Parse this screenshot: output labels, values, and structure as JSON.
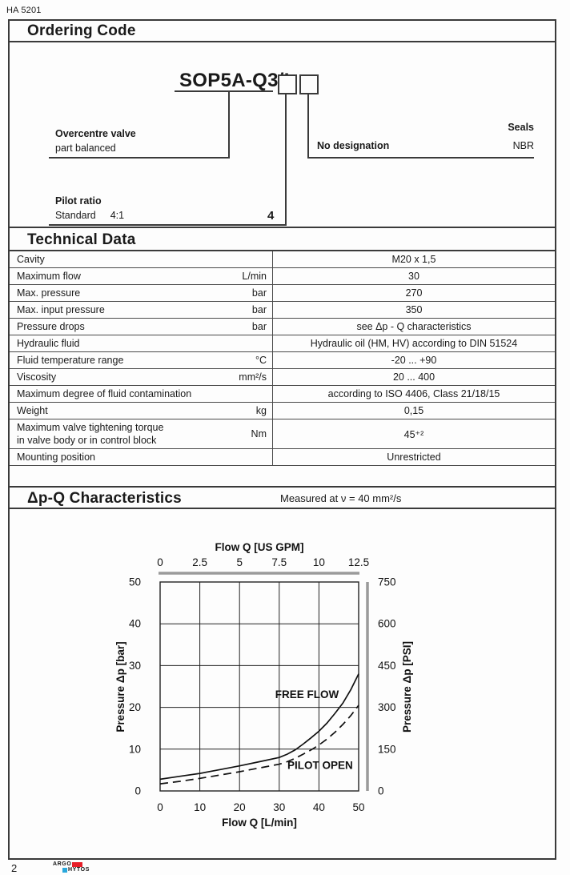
{
  "page": {
    "doc_code": "HA 5201",
    "page_number": "2",
    "logo": {
      "line1": "ARGO",
      "line2": "HYTOS",
      "red": "#e61e28",
      "blue": "#29a8dc"
    }
  },
  "sections": {
    "ordering": {
      "title": "Ordering Code"
    },
    "technical": {
      "title": "Technical Data"
    },
    "chart": {
      "title": "Δp-Q Characteristics",
      "subtitle": "Measured at  ν = 40 mm²/s"
    }
  },
  "ordering_code": {
    "model": "SOP5A-Q3/I",
    "overcentre": {
      "bold": "Overcentre valve",
      "normal": "part balanced"
    },
    "pilot": {
      "bold": "Pilot ratio",
      "normal": "Standard",
      "ratio": "4:1",
      "code": "4"
    },
    "designation": {
      "label": "No designation"
    },
    "seals": {
      "label": "Seals",
      "value": "NBR"
    }
  },
  "technical_data": {
    "rows": [
      {
        "param": "Cavity",
        "unit": "",
        "value": "M20 x 1,5",
        "tall": false
      },
      {
        "param": "Maximum flow",
        "unit": "L/min",
        "value": "30",
        "tall": false
      },
      {
        "param": "Max. pressure",
        "unit": "bar",
        "value": "270",
        "tall": false
      },
      {
        "param": "Max. input pressure",
        "unit": "bar",
        "value": "350",
        "tall": false
      },
      {
        "param": "Pressure drops",
        "unit": "bar",
        "value": "see Δp - Q characteristics",
        "tall": false
      },
      {
        "param": "Hydraulic fluid",
        "unit": "",
        "value": "Hydraulic oil (HM, HV) according to DIN 51524",
        "tall": false
      },
      {
        "param": "Fluid temperature range",
        "unit": "°C",
        "value": "-20 ... +90",
        "tall": false
      },
      {
        "param": "Viscosity",
        "unit": "mm²/s",
        "value": "20 ... 400",
        "tall": false
      },
      {
        "param": "Maximum degree of fluid contamination",
        "unit": "",
        "value": "according to ISO 4406, Class 21/18/15",
        "tall": false
      },
      {
        "param": "Weight",
        "unit": "kg",
        "value": "0,15",
        "tall": false
      },
      {
        "param": "Maximum valve tightening torque\nin valve body or in control block",
        "unit": "Nm",
        "value": "45⁺²",
        "tall": true
      },
      {
        "param": "Mounting position",
        "unit": "",
        "value": "Unrestricted",
        "tall": false
      }
    ]
  },
  "chart_data": {
    "type": "line",
    "title": "Δp-Q Characteristics",
    "subtitle": "Measured at ν = 40 mm²/s",
    "grid": true,
    "x_bottom": {
      "label": "Flow Q [L/min]",
      "ticks": [
        0,
        10,
        20,
        30,
        40,
        50
      ],
      "range": [
        0,
        50
      ]
    },
    "x_top": {
      "label": "Flow Q [US GPM]",
      "ticks": [
        0,
        2.5,
        5,
        7.5,
        10,
        12.5
      ],
      "range": [
        0,
        12.5
      ]
    },
    "y_left": {
      "label": "Pressure Δp [bar]",
      "ticks": [
        0,
        10,
        20,
        30,
        40,
        50
      ],
      "range": [
        0,
        50
      ]
    },
    "y_right": {
      "label": "Pressure Δp [PSI]",
      "ticks": [
        0,
        150,
        300,
        450,
        600,
        750
      ],
      "range": [
        0,
        750
      ]
    },
    "series": [
      {
        "name": "FREE FLOW",
        "style": "solid",
        "points": [
          [
            0,
            2.8
          ],
          [
            5,
            3.5
          ],
          [
            10,
            4.2
          ],
          [
            15,
            5.1
          ],
          [
            20,
            6.0
          ],
          [
            25,
            7.0
          ],
          [
            30,
            8.0
          ],
          [
            32,
            8.8
          ],
          [
            34,
            9.8
          ],
          [
            36,
            11.2
          ],
          [
            38,
            12.7
          ],
          [
            40,
            14.3
          ],
          [
            42,
            16.2
          ],
          [
            44,
            18.5
          ],
          [
            46,
            21.0
          ],
          [
            48,
            24.2
          ],
          [
            50,
            28.0
          ]
        ],
        "label_pos": [
          37,
          22.2
        ]
      },
      {
        "name": "PILOT OPEN",
        "style": "dashed",
        "points": [
          [
            0,
            1.7
          ],
          [
            5,
            2.3
          ],
          [
            10,
            3.0
          ],
          [
            15,
            3.8
          ],
          [
            20,
            4.6
          ],
          [
            25,
            5.5
          ],
          [
            30,
            6.4
          ],
          [
            32,
            7.0
          ],
          [
            34,
            7.8
          ],
          [
            36,
            8.8
          ],
          [
            38,
            9.8
          ],
          [
            40,
            11.0
          ],
          [
            42,
            12.4
          ],
          [
            44,
            14.0
          ],
          [
            46,
            15.9
          ],
          [
            48,
            18.0
          ],
          [
            50,
            20.5
          ]
        ],
        "label_pos": [
          40.3,
          5.3
        ]
      }
    ]
  }
}
